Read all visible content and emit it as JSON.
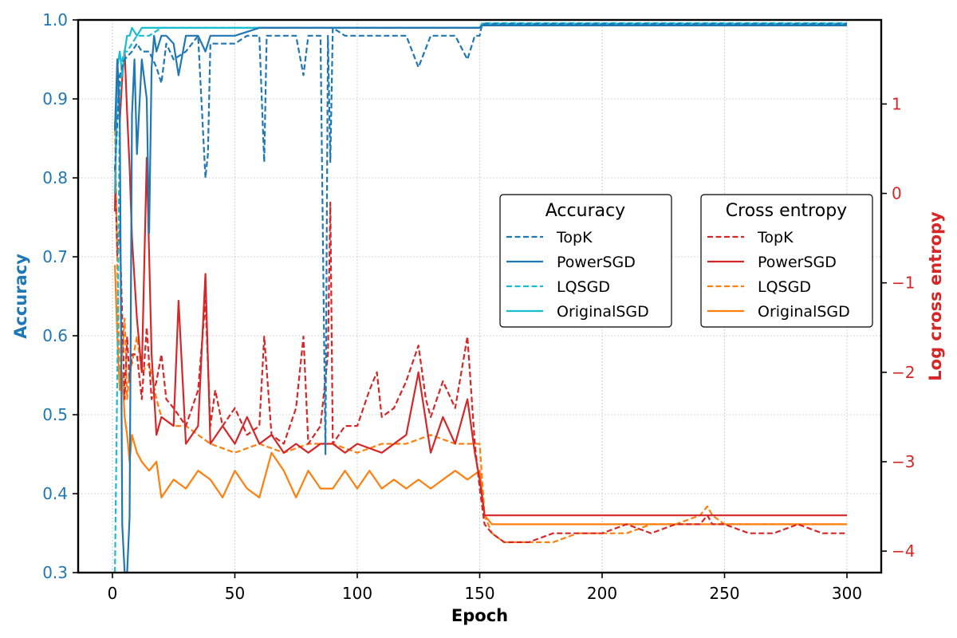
{
  "chart_data": {
    "type": "line",
    "xlabel": "Epoch",
    "ylabel": "Accuracy",
    "ylabel_right": "Log cross entropy",
    "xlim": [
      -14,
      314
    ],
    "ylim": [
      0.3,
      1.0
    ],
    "ylim_right": [
      -4.24,
      1.94
    ],
    "x_ticks": [
      0,
      50,
      100,
      150,
      200,
      250,
      300
    ],
    "y_ticks": [
      0.3,
      0.4,
      0.5,
      0.6,
      0.7,
      0.8,
      0.9,
      1.0
    ],
    "y_ticks_right": [
      -4,
      -3,
      -2,
      -1,
      0,
      1
    ],
    "grid": true,
    "colors": {
      "left_axis": "#1f77b4",
      "right_axis": "#d62728",
      "TopK_acc": "#1f77b4",
      "PowerSGD_acc": "#1f77b4",
      "LQSGD_acc": "#17becf",
      "OriginalSGD_acc": "#17becf",
      "TopK_ce": "#d62728",
      "PowerSGD_ce": "#d62728",
      "LQSGD_ce": "#ff7f0e",
      "OriginalSGD_ce": "#ff7f0e"
    },
    "legends": [
      {
        "title": "Accuracy",
        "placement": "center-right",
        "entries": [
          "TopK",
          "PowerSGD",
          "LQSGD",
          "OriginalSGD"
        ]
      },
      {
        "title": "Cross entropy",
        "placement": "center-right",
        "entries": [
          "TopK",
          "PowerSGD",
          "LQSGD",
          "OriginalSGD"
        ]
      }
    ],
    "series": [
      {
        "name": "TopK",
        "metric": "accuracy",
        "axis": "left",
        "style": "dashed",
        "x": [
          1,
          3,
          5,
          8,
          10,
          12,
          15,
          18,
          20,
          22,
          25,
          30,
          35,
          38,
          39,
          40,
          45,
          50,
          55,
          60,
          62,
          63,
          65,
          70,
          75,
          78,
          80,
          85,
          87,
          88,
          89,
          90,
          95,
          100,
          110,
          120,
          125,
          130,
          140,
          145,
          148,
          150,
          151,
          155,
          200,
          250,
          300
        ],
        "y": [
          0.81,
          0.93,
          0.95,
          0.96,
          0.97,
          0.96,
          0.96,
          0.94,
          0.92,
          0.97,
          0.95,
          0.96,
          0.98,
          0.8,
          0.83,
          0.97,
          0.97,
          0.97,
          0.98,
          0.98,
          0.82,
          0.98,
          0.98,
          0.98,
          0.98,
          0.93,
          0.98,
          0.98,
          0.45,
          0.98,
          0.82,
          0.99,
          0.98,
          0.98,
          0.98,
          0.98,
          0.94,
          0.98,
          0.98,
          0.95,
          0.98,
          0.98,
          0.995,
          0.995,
          0.995,
          0.995,
          0.995
        ]
      },
      {
        "name": "PowerSGD",
        "metric": "accuracy",
        "axis": "left",
        "style": "solid",
        "x": [
          1,
          2,
          3,
          4,
          5,
          6,
          7,
          8,
          9,
          10,
          12,
          14,
          15,
          16,
          17,
          18,
          20,
          22,
          25,
          27,
          30,
          35,
          38,
          40,
          45,
          50,
          60,
          70,
          80,
          100,
          120,
          140,
          150,
          151,
          155,
          200,
          250,
          300
        ],
        "y": [
          0.86,
          0.95,
          0.88,
          0.36,
          0.3,
          0.3,
          0.37,
          0.88,
          0.95,
          0.83,
          0.95,
          0.9,
          0.73,
          0.94,
          0.98,
          0.96,
          0.98,
          0.98,
          0.97,
          0.93,
          0.98,
          0.98,
          0.96,
          0.98,
          0.98,
          0.98,
          0.99,
          0.99,
          0.99,
          0.99,
          0.99,
          0.99,
          0.99,
          0.993,
          0.993,
          0.993,
          0.993,
          0.993
        ]
      },
      {
        "name": "LQSGD",
        "metric": "accuracy",
        "axis": "left",
        "style": "dashed",
        "x": [
          1,
          2,
          3,
          4,
          5,
          6,
          8,
          10,
          15,
          20,
          30,
          50,
          100,
          150,
          151,
          155,
          200,
          250,
          300
        ],
        "y": [
          0.3,
          0.55,
          0.9,
          0.95,
          0.96,
          0.96,
          0.97,
          0.98,
          0.98,
          0.99,
          0.99,
          0.99,
          0.99,
          0.99,
          0.996,
          0.996,
          0.996,
          0.996,
          0.996
        ]
      },
      {
        "name": "OriginalSGD",
        "metric": "accuracy",
        "axis": "left",
        "style": "solid",
        "x": [
          1,
          2,
          3,
          4,
          5,
          6,
          7,
          8,
          10,
          12,
          15,
          18,
          20,
          30,
          50,
          100,
          150,
          151,
          155,
          200,
          250,
          300
        ],
        "y": [
          0.78,
          0.94,
          0.96,
          0.93,
          0.96,
          0.98,
          0.98,
          0.99,
          0.98,
          0.99,
          0.99,
          0.99,
          0.99,
          0.99,
          0.99,
          0.99,
          0.99,
          0.995,
          0.995,
          0.995,
          0.995,
          0.995
        ]
      },
      {
        "name": "TopK",
        "metric": "cross_entropy",
        "axis": "right",
        "style": "dashed",
        "x": [
          1,
          2,
          3,
          4,
          5,
          6,
          7,
          8,
          10,
          12,
          14,
          16,
          18,
          20,
          22,
          25,
          30,
          35,
          38,
          40,
          42,
          45,
          50,
          55,
          60,
          62,
          65,
          70,
          75,
          78,
          80,
          85,
          88,
          89,
          90,
          95,
          100,
          105,
          108,
          110,
          115,
          120,
          125,
          128,
          130,
          135,
          140,
          145,
          148,
          150,
          152,
          155,
          160,
          170,
          180,
          190,
          200,
          210,
          220,
          230,
          240,
          243,
          245,
          250,
          260,
          270,
          280,
          290,
          300
        ],
        "y": [
          0.3,
          -0.7,
          -0.4,
          -1.4,
          -2.3,
          -1.6,
          -2.1,
          -1.8,
          -1.8,
          -2.3,
          -1.5,
          -2.3,
          -2.1,
          -1.8,
          -2.3,
          -2.4,
          -2.6,
          -2.2,
          -1.2,
          -2.6,
          -2.2,
          -2.6,
          -2.4,
          -2.7,
          -2.6,
          -1.6,
          -2.7,
          -2.8,
          -2.4,
          -1.6,
          -2.8,
          -2.6,
          -1.8,
          -0.1,
          -2.8,
          -2.6,
          -2.6,
          -2.2,
          -2.0,
          -2.5,
          -2.4,
          -2.1,
          -1.7,
          -2.3,
          -2.5,
          -2.1,
          -2.4,
          -1.6,
          -2.8,
          -3.3,
          -3.7,
          -3.8,
          -3.9,
          -3.9,
          -3.8,
          -3.8,
          -3.8,
          -3.7,
          -3.8,
          -3.7,
          -3.7,
          -3.6,
          -3.7,
          -3.7,
          -3.8,
          -3.8,
          -3.7,
          -3.8,
          -3.8
        ]
      },
      {
        "name": "PowerSGD",
        "metric": "cross_entropy",
        "axis": "right",
        "style": "solid",
        "x": [
          1,
          2,
          3,
          4,
          5,
          6,
          7,
          8,
          10,
          12,
          14,
          16,
          18,
          20,
          25,
          27,
          30,
          35,
          38,
          40,
          45,
          50,
          55,
          60,
          65,
          70,
          75,
          80,
          85,
          90,
          95,
          100,
          110,
          120,
          125,
          130,
          135,
          140,
          145,
          148,
          150,
          152,
          155,
          160,
          200,
          250,
          300
        ],
        "y": [
          -0.2,
          1.5,
          0.8,
          1.3,
          1.6,
          0.9,
          0.3,
          -0.5,
          -1.4,
          -2.0,
          0.4,
          -1.8,
          -2.7,
          -2.5,
          -2.6,
          -1.2,
          -2.8,
          -2.6,
          -0.9,
          -2.8,
          -2.6,
          -2.8,
          -2.5,
          -2.8,
          -2.7,
          -2.9,
          -2.8,
          -2.9,
          -2.8,
          -2.8,
          -2.9,
          -2.8,
          -2.9,
          -2.7,
          -2.0,
          -2.9,
          -2.5,
          -2.8,
          -2.3,
          -2.9,
          -3.2,
          -3.6,
          -3.6,
          -3.6,
          -3.6,
          -3.6,
          -3.6
        ]
      },
      {
        "name": "LQSGD",
        "metric": "cross_entropy",
        "axis": "right",
        "style": "dashed",
        "x": [
          1,
          2,
          3,
          4,
          5,
          6,
          7,
          8,
          10,
          12,
          15,
          18,
          20,
          25,
          30,
          40,
          50,
          60,
          70,
          80,
          90,
          100,
          110,
          120,
          130,
          140,
          150,
          152,
          155,
          160,
          170,
          180,
          190,
          200,
          210,
          220,
          230,
          240,
          243,
          245,
          250,
          260,
          270,
          280,
          290,
          300
        ],
        "y": [
          0.8,
          -0.8,
          -2.1,
          -1.8,
          -1.4,
          -2.3,
          -2.0,
          -1.9,
          -1.6,
          -2.0,
          -1.9,
          -2.3,
          -2.5,
          -2.6,
          -2.6,
          -2.8,
          -2.9,
          -2.8,
          -2.9,
          -2.8,
          -2.8,
          -2.9,
          -2.8,
          -2.8,
          -2.7,
          -2.8,
          -2.8,
          -3.6,
          -3.8,
          -3.9,
          -3.9,
          -3.9,
          -3.8,
          -3.8,
          -3.8,
          -3.7,
          -3.7,
          -3.6,
          -3.5,
          -3.6,
          -3.7,
          -3.7,
          -3.7,
          -3.7,
          -3.7,
          -3.7
        ]
      },
      {
        "name": "OriginalSGD",
        "metric": "cross_entropy",
        "axis": "right",
        "style": "solid",
        "x": [
          1,
          2,
          3,
          4,
          5,
          6,
          7,
          8,
          10,
          12,
          15,
          18,
          20,
          25,
          30,
          35,
          40,
          45,
          50,
          55,
          60,
          65,
          70,
          75,
          80,
          85,
          90,
          95,
          100,
          105,
          110,
          115,
          120,
          125,
          130,
          135,
          140,
          145,
          150,
          152,
          155,
          160,
          200,
          250,
          300
        ],
        "y": [
          -0.8,
          -1.6,
          -2.2,
          -2.0,
          -2.5,
          -2.7,
          -3.0,
          -2.7,
          -2.9,
          -3.0,
          -3.1,
          -3.0,
          -3.4,
          -3.2,
          -3.3,
          -3.1,
          -3.2,
          -3.4,
          -3.1,
          -3.3,
          -3.4,
          -2.9,
          -3.1,
          -3.4,
          -3.1,
          -3.3,
          -3.3,
          -3.1,
          -3.3,
          -3.1,
          -3.3,
          -3.2,
          -3.3,
          -3.2,
          -3.3,
          -3.2,
          -3.1,
          -3.2,
          -3.1,
          -3.6,
          -3.7,
          -3.7,
          -3.7,
          -3.7,
          -3.7
        ]
      }
    ]
  }
}
